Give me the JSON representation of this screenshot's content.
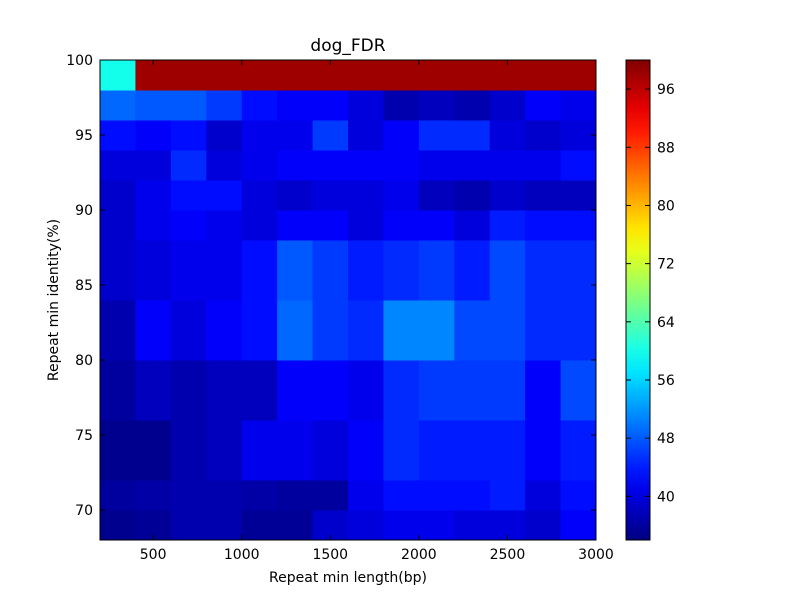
{
  "chart_data": {
    "type": "heatmap",
    "title": "dog_FDR",
    "xlabel": "Repeat min length(bp)",
    "ylabel": "Repeat min identity(%)",
    "x_range": [
      200,
      3000
    ],
    "y_range": [
      68,
      100
    ],
    "x_ticks": [
      500,
      1000,
      1500,
      2000,
      2500,
      3000
    ],
    "x_tick_labels": [
      "500",
      "1000",
      "1500",
      "2000",
      "2500",
      "3000"
    ],
    "y_ticks": [
      70,
      75,
      80,
      85,
      90,
      95,
      100
    ],
    "y_tick_labels": [
      "70",
      "75",
      "80",
      "85",
      "90",
      "95",
      "100"
    ],
    "colorbar": {
      "colormap": "jet",
      "range": [
        34,
        100
      ],
      "ticks": [
        40,
        48,
        56,
        64,
        72,
        80,
        88,
        96
      ],
      "tick_labels": [
        "40",
        "48",
        "56",
        "64",
        "72",
        "80",
        "88",
        "96"
      ]
    },
    "x_centers": [
      300,
      500,
      700,
      900,
      1100,
      1300,
      1500,
      1700,
      1900,
      2100,
      2300,
      2500,
      2700,
      2900
    ],
    "y_centers": [
      69,
      71,
      73,
      75,
      77,
      79,
      81,
      83,
      85,
      87,
      89,
      91,
      93,
      95,
      97,
      99
    ],
    "z": [
      [
        35,
        35.5,
        37,
        37,
        35.5,
        35.5,
        39,
        40,
        41,
        41,
        40,
        40,
        39,
        42
      ],
      [
        36,
        36.5,
        37,
        37,
        36.5,
        36,
        36,
        41,
        43,
        43,
        43,
        44,
        40,
        43
      ],
      [
        35,
        35,
        37,
        38,
        41,
        41,
        40,
        42,
        45,
        44,
        44,
        44,
        42,
        44
      ],
      [
        35,
        35,
        37,
        38,
        41,
        41,
        40,
        42,
        45,
        44,
        44,
        44,
        42,
        44
      ],
      [
        36,
        38,
        37,
        38,
        38,
        42,
        42,
        41,
        45,
        46,
        46,
        46,
        42,
        47
      ],
      [
        36,
        38,
        37,
        38,
        38,
        42,
        42,
        41,
        45,
        46,
        46,
        46,
        42,
        47
      ],
      [
        37,
        42,
        40,
        42,
        43,
        49,
        46,
        45,
        51,
        51,
        47,
        47,
        45,
        45
      ],
      [
        37,
        42,
        40,
        42,
        43,
        49,
        46,
        45,
        51,
        51,
        47,
        47,
        45,
        45
      ],
      [
        39,
        40,
        41,
        41,
        43,
        48,
        46,
        44,
        45,
        46,
        44,
        47,
        45,
        45
      ],
      [
        39,
        40,
        41,
        41,
        43,
        48,
        46,
        44,
        45,
        46,
        44,
        47,
        45,
        45
      ],
      [
        39,
        41,
        42,
        41,
        40,
        42,
        42,
        40,
        42,
        42,
        40,
        44,
        43,
        43
      ],
      [
        39,
        41,
        43,
        43,
        40,
        39,
        40,
        40,
        41,
        38,
        37,
        39,
        38,
        38
      ],
      [
        40,
        40,
        45,
        40,
        41,
        42,
        42,
        42,
        42,
        41,
        41,
        41,
        41,
        43
      ],
      [
        43,
        42,
        43,
        39,
        41,
        41,
        46,
        40,
        42,
        45,
        45,
        40,
        39,
        40
      ],
      [
        49,
        48,
        48,
        46,
        43,
        42,
        42,
        40,
        37,
        38,
        37,
        39,
        42,
        41
      ],
      [
        60,
        98,
        98,
        98,
        98,
        98,
        98,
        98,
        98,
        98,
        98,
        98,
        98,
        98
      ]
    ]
  }
}
